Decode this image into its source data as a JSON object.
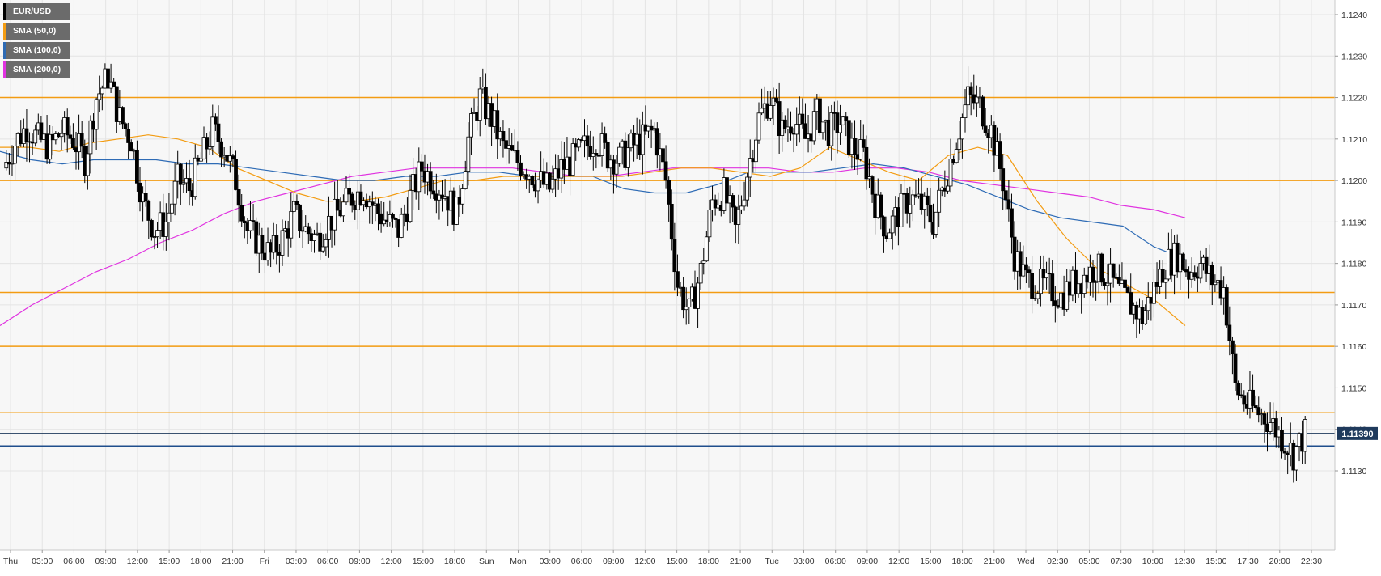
{
  "chart_data": {
    "type": "candlestick",
    "title": "",
    "symbol": "EUR/USD",
    "ylim": [
      1.112,
      1.1245
    ],
    "y_ticks": [
      "1.1130",
      "1.1140",
      "1.1150",
      "1.1160",
      "1.1170",
      "1.1180",
      "1.1190",
      "1.1200",
      "1.1210",
      "1.1220",
      "1.1230",
      "1.1240"
    ],
    "x_ticks": [
      "Thu",
      "03:00",
      "06:00",
      "09:00",
      "12:00",
      "15:00",
      "18:00",
      "21:00",
      "Fri",
      "03:00",
      "06:00",
      "09:00",
      "12:00",
      "15:00",
      "18:00",
      "Sun",
      "Mon",
      "03:00",
      "06:00",
      "09:00",
      "12:00",
      "15:00",
      "18:00",
      "21:00",
      "Tue",
      "03:00",
      "06:00",
      "09:00",
      "12:00",
      "15:00",
      "18:00",
      "21:00",
      "Wed",
      "02:30",
      "05:00",
      "07:30",
      "10:00",
      "12:30",
      "15:00",
      "17:30",
      "20:00",
      "22:30"
    ],
    "current_price": "1.11390",
    "grid": true,
    "legend": [
      {
        "label": "EUR/USD",
        "color": "#000000"
      },
      {
        "label": "SMA (50,0)",
        "color": "#f39c12"
      },
      {
        "label": "SMA (100,0)",
        "color": "#2e6bb5"
      },
      {
        "label": "SMA (200,0)",
        "color": "#e033e0"
      }
    ],
    "levels": [
      {
        "value": 1.122,
        "color": "#f39c12"
      },
      {
        "value": 1.12,
        "color": "#f39c12"
      },
      {
        "value": 1.1173,
        "color": "#f39c12"
      },
      {
        "value": 1.116,
        "color": "#f39c12"
      },
      {
        "value": 1.1144,
        "color": "#f39c12"
      },
      {
        "value": 1.1136,
        "color": "#1f4e8c"
      },
      {
        "value": 1.1139,
        "color": "#1f3a5c"
      }
    ],
    "price_path": [
      1.1203,
      1.1209,
      1.1213,
      1.121,
      1.1208,
      1.1212,
      1.121,
      1.1205,
      1.122,
      1.1225,
      1.1215,
      1.121,
      1.1195,
      1.1188,
      1.119,
      1.12,
      1.1198,
      1.1205,
      1.1212,
      1.1208,
      1.12,
      1.1188,
      1.1185,
      1.1182,
      1.1186,
      1.1192,
      1.1188,
      1.1186,
      1.119,
      1.1193,
      1.1196,
      1.1198,
      1.1193,
      1.119,
      1.1188,
      1.1196,
      1.1203,
      1.12,
      1.1197,
      1.1192,
      1.121,
      1.122,
      1.1215,
      1.1208,
      1.1205,
      1.1203,
      1.12,
      1.1198,
      1.1203,
      1.1205,
      1.1208,
      1.121,
      1.1206,
      1.1205,
      1.1208,
      1.121,
      1.1212,
      1.12,
      1.1175,
      1.1168,
      1.1178,
      1.1195,
      1.1197,
      1.1188,
      1.1202,
      1.1215,
      1.122,
      1.1212,
      1.1215,
      1.121,
      1.1216,
      1.1212,
      1.1214,
      1.1208,
      1.1206,
      1.1195,
      1.1188,
      1.1192,
      1.1196,
      1.1194,
      1.119,
      1.12,
      1.121,
      1.122,
      1.1218,
      1.1212,
      1.12,
      1.1182,
      1.1176,
      1.1175,
      1.1174,
      1.1172,
      1.1175,
      1.1177,
      1.1179,
      1.1177,
      1.1173,
      1.117,
      1.1167,
      1.1174,
      1.118,
      1.1182,
      1.1178,
      1.118,
      1.1176,
      1.1174,
      1.115,
      1.1146,
      1.1144,
      1.1142,
      1.1138,
      1.1134,
      1.1139
    ],
    "sma_50": [
      1.1208,
      1.1208,
      1.1207,
      1.1209,
      1.121,
      1.1211,
      1.121,
      1.1208,
      1.1203,
      1.12,
      1.1197,
      1.1195,
      1.1195,
      1.1196,
      1.1198,
      1.12,
      1.12,
      1.1201,
      1.1201,
      1.1201,
      1.1201,
      1.1201,
      1.1202,
      1.1203,
      1.1203,
      1.1202,
      1.1201,
      1.1203,
      1.1208,
      1.1205,
      1.1202,
      1.12,
      1.1206,
      1.1208,
      1.1206,
      1.1195,
      1.1186,
      1.1179,
      1.1175,
      1.1171,
      1.1165
    ],
    "sma_100": [
      1.1207,
      1.1205,
      1.1204,
      1.1205,
      1.1205,
      1.1205,
      1.1204,
      1.1204,
      1.1203,
      1.1202,
      1.1201,
      1.12,
      1.12,
      1.1201,
      1.1201,
      1.1202,
      1.1202,
      1.1201,
      1.1201,
      1.1201,
      1.1198,
      1.1197,
      1.1197,
      1.1199,
      1.1202,
      1.1202,
      1.1202,
      1.1203,
      1.1204,
      1.1203,
      1.1201,
      1.1199,
      1.1196,
      1.1193,
      1.1191,
      1.119,
      1.1189,
      1.1184,
      1.1181
    ],
    "sma_200": [
      1.1165,
      1.117,
      1.1174,
      1.1178,
      1.1181,
      1.1185,
      1.1188,
      1.1192,
      1.1195,
      1.1197,
      1.1199,
      1.1201,
      1.1202,
      1.1203,
      1.1203,
      1.1203,
      1.1203,
      1.1202,
      1.1201,
      1.1201,
      1.1202,
      1.1203,
      1.1203,
      1.1203,
      1.1203,
      1.1202,
      1.1202,
      1.1203,
      1.1203,
      1.1202,
      1.12,
      1.1199,
      1.1198,
      1.1197,
      1.1196,
      1.1194,
      1.1193,
      1.1191
    ]
  }
}
